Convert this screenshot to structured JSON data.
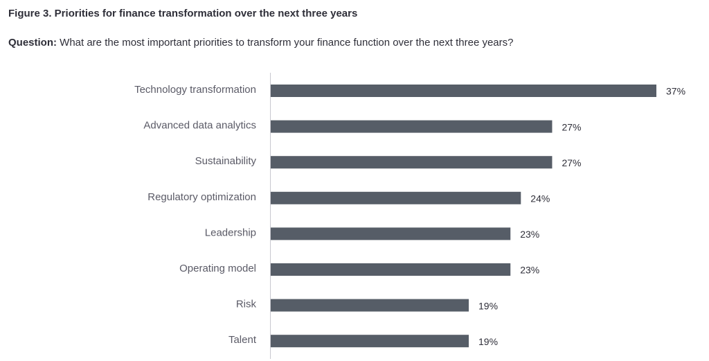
{
  "figure": {
    "title": "Figure 3. Priorities for finance transformation over the next three years",
    "question_label": "Question:",
    "question_text": " What are the most important priorities to transform your finance function over the next three years?"
  },
  "chart_data": {
    "type": "bar",
    "orientation": "horizontal",
    "categories": [
      "Technology transformation",
      "Advanced data analytics",
      "Sustainability",
      "Regulatory optimization",
      "Leadership",
      "Operating model",
      "Risk",
      "Talent"
    ],
    "values": [
      37,
      27,
      27,
      24,
      23,
      23,
      19,
      19
    ],
    "value_labels": [
      "37%",
      "27%",
      "27%",
      "24%",
      "23%",
      "23%",
      "19%",
      "19%"
    ],
    "unit": "%",
    "xlim": [
      0,
      37
    ],
    "grid": false,
    "bar_color": "#565d67"
  }
}
